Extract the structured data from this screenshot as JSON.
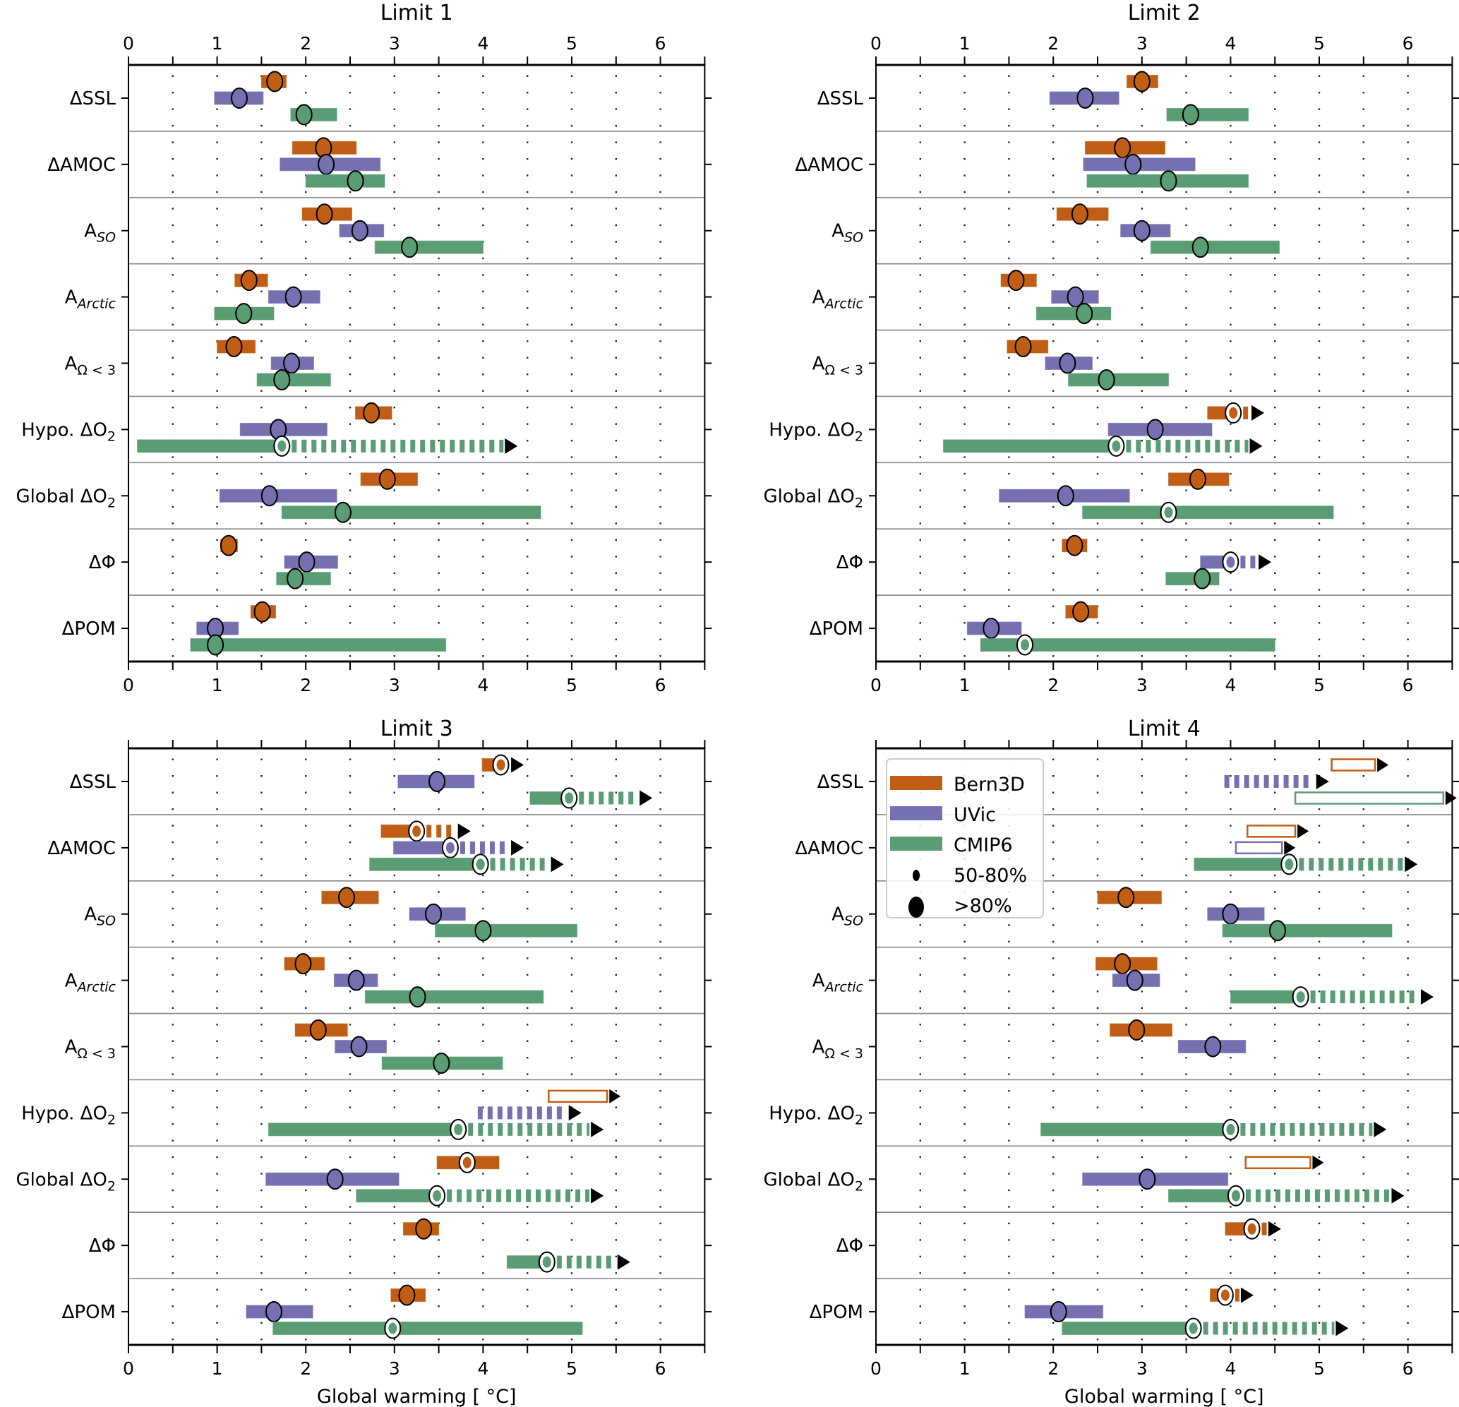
{
  "chart_data": {
    "type": "bar",
    "subtype": "horizontal-range-with-markers",
    "xlabel": "Global warming [$^\\circ$C]",
    "xlabel_text": "Global warming [ °C]",
    "xlim": [
      0,
      6.5
    ],
    "xticks": [
      0,
      1,
      2,
      3,
      4,
      5,
      6
    ],
    "grid": "dotted at 0.5 steps",
    "rows": [
      "ΔSSL",
      "ΔAMOC",
      "A_SO",
      "A_Arctic",
      "A_Ω<3",
      "Hypo. ΔO2",
      "Global ΔO2",
      "ΔΦ",
      "ΔPOM"
    ],
    "row_labels": [
      {
        "main": "ΔSSL",
        "sub": ""
      },
      {
        "main": "ΔAMOC",
        "sub": ""
      },
      {
        "main": "A",
        "sub": "SO",
        "sub_italic": true
      },
      {
        "main": "A",
        "sub": "Arctic",
        "sub_italic": true
      },
      {
        "main": "A",
        "sub": "Ω < 3",
        "sub_italic": false
      },
      {
        "main": "Hypo. ΔO",
        "sub": "2",
        "sub_italic": false
      },
      {
        "main": "Global ΔO",
        "sub": "2",
        "sub_italic": false
      },
      {
        "main": "ΔΦ",
        "sub": ""
      },
      {
        "main": "ΔPOM",
        "sub": ""
      }
    ],
    "models": [
      {
        "name": "Bern3D",
        "color": "#c05e15"
      },
      {
        "name": "UVic",
        "color": "#7570b0"
      },
      {
        "name": "CMIP6",
        "color": "#5a9c73"
      }
    ],
    "legend": {
      "location": "Limit 4 panel, upper-left",
      "entries": [
        "Bern3D",
        "UVic",
        "CMIP6",
        "50-80%",
        ">80%"
      ]
    },
    "marker_key": {
      "small": "50-80%",
      "large": ">80%"
    },
    "panels": [
      {
        "title": "Limit 1",
        "data": [
          [
            {
              "lo": 1.5,
              "hi": 1.78,
              "c": 1.65,
              "m": "large"
            },
            {
              "lo": 0.97,
              "hi": 1.52,
              "c": 1.25,
              "m": "large"
            },
            {
              "lo": 1.83,
              "hi": 2.35,
              "c": 1.98,
              "m": "large"
            }
          ],
          [
            {
              "lo": 1.85,
              "hi": 2.57,
              "c": 2.2,
              "m": "large"
            },
            {
              "lo": 1.71,
              "hi": 2.84,
              "c": 2.23,
              "m": "large"
            },
            {
              "lo": 2.0,
              "hi": 2.89,
              "c": 2.56,
              "m": "large"
            }
          ],
          [
            {
              "lo": 1.96,
              "hi": 2.52,
              "c": 2.21,
              "m": "large"
            },
            {
              "lo": 2.38,
              "hi": 2.88,
              "c": 2.61,
              "m": "large"
            },
            {
              "lo": 2.78,
              "hi": 4.0,
              "c": 3.17,
              "m": "large"
            }
          ],
          [
            {
              "lo": 1.2,
              "hi": 1.57,
              "c": 1.36,
              "m": "large"
            },
            {
              "lo": 1.58,
              "hi": 2.16,
              "c": 1.86,
              "m": "large"
            },
            {
              "lo": 0.97,
              "hi": 1.64,
              "c": 1.3,
              "m": "large"
            }
          ],
          [
            {
              "lo": 1.0,
              "hi": 1.43,
              "c": 1.19,
              "m": "large"
            },
            {
              "lo": 1.61,
              "hi": 2.09,
              "c": 1.84,
              "m": "large"
            },
            {
              "lo": 1.45,
              "hi": 2.28,
              "c": 1.73,
              "m": "large"
            }
          ],
          [
            {
              "lo": 2.56,
              "hi": 2.97,
              "c": 2.74,
              "m": "large"
            },
            {
              "lo": 1.26,
              "hi": 2.24,
              "c": 1.69,
              "m": "large"
            },
            {
              "lo": 0.1,
              "hi": 1.73,
              "c": 1.73,
              "m": "small",
              "ext": 4.23
            }
          ],
          [
            {
              "lo": 2.62,
              "hi": 3.26,
              "c": 2.92,
              "m": "large"
            },
            {
              "lo": 1.03,
              "hi": 2.35,
              "c": 1.59,
              "m": "large"
            },
            {
              "lo": 1.73,
              "hi": 4.65,
              "c": 2.42,
              "m": "large"
            }
          ],
          [
            {
              "lo": 1.04,
              "hi": 1.23,
              "c": 1.13,
              "m": "large"
            },
            {
              "lo": 1.76,
              "hi": 2.36,
              "c": 2.01,
              "m": "large"
            },
            {
              "lo": 1.67,
              "hi": 2.28,
              "c": 1.88,
              "m": "large"
            }
          ],
          [
            {
              "lo": 1.38,
              "hi": 1.66,
              "c": 1.51,
              "m": "large"
            },
            {
              "lo": 0.77,
              "hi": 1.24,
              "c": 0.98,
              "m": "large"
            },
            {
              "lo": 0.7,
              "hi": 3.58,
              "c": 0.98,
              "m": "large"
            }
          ]
        ]
      },
      {
        "title": "Limit 2",
        "data": [
          [
            {
              "lo": 2.83,
              "hi": 3.18,
              "c": 3.0,
              "m": "large"
            },
            {
              "lo": 1.96,
              "hi": 2.74,
              "c": 2.36,
              "m": "large"
            },
            {
              "lo": 3.28,
              "hi": 4.2,
              "c": 3.55,
              "m": "large"
            }
          ],
          [
            {
              "lo": 2.36,
              "hi": 3.26,
              "c": 2.78,
              "m": "large"
            },
            {
              "lo": 2.34,
              "hi": 3.6,
              "c": 2.9,
              "m": "large"
            },
            {
              "lo": 2.38,
              "hi": 4.2,
              "c": 3.3,
              "m": "large"
            }
          ],
          [
            {
              "lo": 2.04,
              "hi": 2.62,
              "c": 2.3,
              "m": "large"
            },
            {
              "lo": 2.76,
              "hi": 3.32,
              "c": 3.0,
              "m": "large"
            },
            {
              "lo": 3.1,
              "hi": 4.55,
              "c": 3.66,
              "m": "large"
            }
          ],
          [
            {
              "lo": 1.41,
              "hi": 1.81,
              "c": 1.58,
              "m": "large"
            },
            {
              "lo": 1.98,
              "hi": 2.51,
              "c": 2.25,
              "m": "large"
            },
            {
              "lo": 1.81,
              "hi": 2.65,
              "c": 2.35,
              "m": "large"
            }
          ],
          [
            {
              "lo": 1.48,
              "hi": 1.94,
              "c": 1.66,
              "m": "large"
            },
            {
              "lo": 1.91,
              "hi": 2.44,
              "c": 2.16,
              "m": "large"
            },
            {
              "lo": 2.17,
              "hi": 3.3,
              "c": 2.6,
              "m": "large"
            }
          ],
          [
            {
              "lo": 3.74,
              "hi": 4.03,
              "c": 4.03,
              "m": "small",
              "ext": 4.22
            },
            {
              "lo": 2.62,
              "hi": 3.79,
              "c": 3.15,
              "m": "large"
            },
            {
              "lo": 0.76,
              "hi": 2.71,
              "c": 2.71,
              "m": "small",
              "ext": 4.2
            }
          ],
          [
            {
              "lo": 3.3,
              "hi": 3.98,
              "c": 3.63,
              "m": "large"
            },
            {
              "lo": 1.39,
              "hi": 2.86,
              "c": 2.14,
              "m": "large"
            },
            {
              "lo": 2.33,
              "hi": 5.16,
              "c": 3.3,
              "m": "small"
            }
          ],
          [
            {
              "lo": 2.1,
              "hi": 2.38,
              "c": 2.24,
              "m": "large"
            },
            {
              "lo": 3.66,
              "hi": 4.0,
              "c": 4.0,
              "m": "small",
              "ext": 4.3
            },
            {
              "lo": 3.27,
              "hi": 3.87,
              "c": 3.68,
              "m": "large"
            }
          ],
          [
            {
              "lo": 2.14,
              "hi": 2.5,
              "c": 2.31,
              "m": "large"
            },
            {
              "lo": 1.03,
              "hi": 1.64,
              "c": 1.3,
              "m": "large"
            },
            {
              "lo": 1.18,
              "hi": 4.5,
              "c": 1.68,
              "m": "small"
            }
          ]
        ]
      },
      {
        "title": "Limit 3",
        "data": [
          [
            {
              "lo": 3.99,
              "hi": 4.2,
              "c": 4.2,
              "m": "small",
              "ext": 4.3
            },
            {
              "lo": 3.04,
              "hi": 3.9,
              "c": 3.48,
              "m": "large"
            },
            {
              "lo": 4.53,
              "hi": 4.97,
              "c": 4.97,
              "m": "small",
              "ext": 5.75
            }
          ],
          [
            {
              "lo": 2.85,
              "hi": 3.25,
              "c": 3.25,
              "m": "small",
              "ext": 3.7
            },
            {
              "lo": 2.99,
              "hi": 3.63,
              "c": 3.63,
              "m": "small",
              "ext": 4.3
            },
            {
              "lo": 2.72,
              "hi": 3.97,
              "c": 3.97,
              "m": "small",
              "ext": 4.75
            }
          ],
          [
            {
              "lo": 2.18,
              "hi": 2.82,
              "c": 2.46,
              "m": "large"
            },
            {
              "lo": 3.17,
              "hi": 3.8,
              "c": 3.44,
              "m": "large"
            },
            {
              "lo": 3.46,
              "hi": 5.06,
              "c": 4.0,
              "m": "large"
            }
          ],
          [
            {
              "lo": 1.76,
              "hi": 2.21,
              "c": 1.97,
              "m": "large"
            },
            {
              "lo": 2.32,
              "hi": 2.81,
              "c": 2.57,
              "m": "large"
            },
            {
              "lo": 2.67,
              "hi": 4.68,
              "c": 3.26,
              "m": "large"
            }
          ],
          [
            {
              "lo": 1.88,
              "hi": 2.47,
              "c": 2.14,
              "m": "large"
            },
            {
              "lo": 2.33,
              "hi": 2.91,
              "c": 2.6,
              "m": "large"
            },
            {
              "lo": 2.86,
              "hi": 4.22,
              "c": 3.53,
              "m": "large"
            }
          ],
          [
            {
              "lo": 4.74,
              "hi": 5.4,
              "m": "none",
              "hollow": true
            },
            {
              "lo": 3.94,
              "hi": 3.94,
              "m": "none",
              "ext": 4.95
            },
            {
              "lo": 1.58,
              "hi": 3.72,
              "c": 3.72,
              "m": "small",
              "ext": 5.2
            }
          ],
          [
            {
              "lo": 3.48,
              "hi": 4.18,
              "c": 3.82,
              "m": "small"
            },
            {
              "lo": 1.55,
              "hi": 3.05,
              "c": 2.33,
              "m": "large"
            },
            {
              "lo": 2.57,
              "hi": 3.48,
              "c": 3.48,
              "m": "small",
              "ext": 5.2
            }
          ],
          [
            {
              "lo": 3.1,
              "hi": 3.5,
              "c": 3.33,
              "m": "large"
            },
            null,
            {
              "lo": 4.27,
              "hi": 4.72,
              "c": 4.72,
              "m": "small",
              "ext": 5.5
            }
          ],
          [
            {
              "lo": 2.96,
              "hi": 3.35,
              "c": 3.14,
              "m": "large"
            },
            {
              "lo": 1.33,
              "hi": 2.08,
              "c": 1.64,
              "m": "large"
            },
            {
              "lo": 1.63,
              "hi": 5.12,
              "c": 2.98,
              "m": "small"
            }
          ]
        ]
      },
      {
        "title": "Limit 4",
        "data": [
          [
            {
              "lo": 5.14,
              "hi": 5.63,
              "m": "none",
              "hollow": true
            },
            {
              "lo": 3.93,
              "hi": 3.93,
              "m": "none",
              "ext": 4.95
            },
            {
              "lo": 4.73,
              "hi": 6.4,
              "m": "none",
              "hollow": true
            }
          ],
          [
            {
              "lo": 4.19,
              "hi": 4.73,
              "m": "none",
              "hollow": true
            },
            {
              "lo": 4.06,
              "hi": 4.58,
              "m": "none",
              "hollow": true
            },
            {
              "lo": 3.59,
              "hi": 4.66,
              "c": 4.66,
              "m": "small",
              "ext": 5.95
            }
          ],
          [
            {
              "lo": 2.5,
              "hi": 3.22,
              "c": 2.82,
              "m": "large"
            },
            {
              "lo": 3.74,
              "hi": 4.38,
              "c": 4.0,
              "m": "large"
            },
            {
              "lo": 3.91,
              "hi": 5.82,
              "c": 4.53,
              "m": "large"
            }
          ],
          [
            {
              "lo": 2.48,
              "hi": 3.17,
              "c": 2.78,
              "m": "large"
            },
            {
              "lo": 2.67,
              "hi": 3.2,
              "c": 2.92,
              "m": "large"
            },
            {
              "lo": 4.0,
              "hi": 4.79,
              "c": 4.79,
              "m": "small",
              "ext": 6.13
            }
          ],
          [
            {
              "lo": 2.64,
              "hi": 3.34,
              "c": 2.94,
              "m": "large"
            },
            {
              "lo": 3.41,
              "hi": 4.17,
              "c": 3.8,
              "m": "large"
            },
            null
          ],
          [
            null,
            null,
            {
              "lo": 1.86,
              "hi": 4.0,
              "c": 4.0,
              "m": "small",
              "ext": 5.6
            }
          ],
          [
            {
              "lo": 4.17,
              "hi": 4.9,
              "m": "none",
              "hollow": true
            },
            {
              "lo": 2.33,
              "hi": 3.97,
              "c": 3.06,
              "m": "large"
            },
            {
              "lo": 3.3,
              "hi": 4.06,
              "c": 4.06,
              "m": "small",
              "ext": 5.8
            }
          ],
          [
            {
              "lo": 3.94,
              "hi": 4.24,
              "c": 4.24,
              "m": "small",
              "ext": 4.41
            },
            null,
            null
          ],
          [
            {
              "lo": 3.77,
              "hi": 3.94,
              "c": 3.94,
              "m": "small",
              "ext": 4.1
            },
            {
              "lo": 1.68,
              "hi": 2.56,
              "c": 2.06,
              "m": "large"
            },
            {
              "lo": 2.1,
              "hi": 3.58,
              "c": 3.58,
              "m": "small",
              "ext": 5.17
            }
          ]
        ]
      }
    ]
  }
}
